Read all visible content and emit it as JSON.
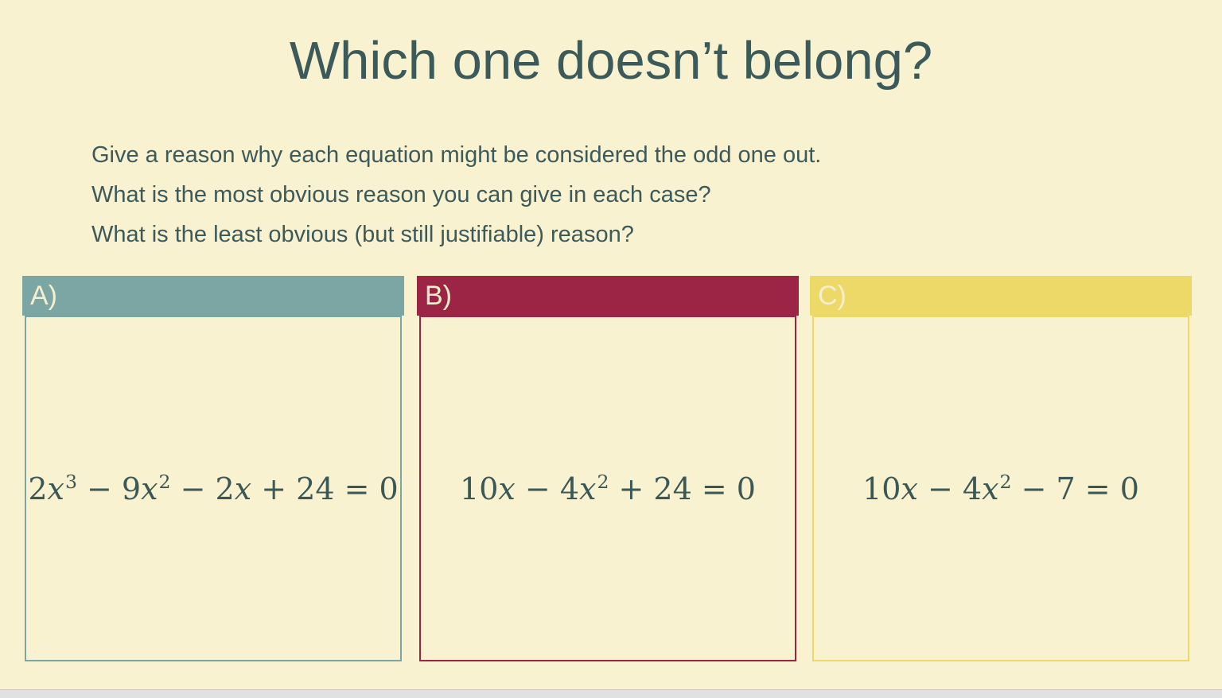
{
  "slide": {
    "title": "Which one doesn’t belong?",
    "prompts": [
      "Give a reason why each equation might be considered the odd one out.",
      "What is the most obvious reason you can give in each case?",
      "What is the least obvious (but still justifiable) reason?"
    ],
    "cards": [
      {
        "label": "A)",
        "equation_text": "2x³ − 9x² − 2x + 24 = 0",
        "equation": [
          {
            "t": "2"
          },
          {
            "t": "x",
            "style": "var"
          },
          {
            "t": "3",
            "style": "sup"
          },
          {
            "t": " − 9"
          },
          {
            "t": "x",
            "style": "var"
          },
          {
            "t": "2",
            "style": "sup"
          },
          {
            "t": " − 2"
          },
          {
            "t": "x",
            "style": "var"
          },
          {
            "t": " + 24 = 0"
          }
        ],
        "header_color": "#7ba6a3"
      },
      {
        "label": "B)",
        "equation_text": "10x − 4x² + 24 = 0",
        "equation": [
          {
            "t": "10"
          },
          {
            "t": "x",
            "style": "var"
          },
          {
            "t": " − 4"
          },
          {
            "t": "x",
            "style": "var"
          },
          {
            "t": "2",
            "style": "sup"
          },
          {
            "t": " + 24 = 0"
          }
        ],
        "header_color": "#9c2444"
      },
      {
        "label": "C)",
        "equation_text": "10x − 4x² − 7 = 0",
        "equation": [
          {
            "t": "10"
          },
          {
            "t": "x",
            "style": "var"
          },
          {
            "t": " − 4"
          },
          {
            "t": "x",
            "style": "var"
          },
          {
            "t": "2",
            "style": "sup"
          },
          {
            "t": " − 7 = 0"
          }
        ],
        "header_color": "#edd967"
      }
    ],
    "colors": {
      "background": "#f9f2d1",
      "text": "#3d5a5b",
      "equation_text": "#3c5856",
      "card_a_header": "#7ba6a3",
      "card_b_header": "#9c2444",
      "card_c_header": "#edd967",
      "card_label": "#f6efcd",
      "bottom_bar": "#e1e1e4"
    }
  }
}
